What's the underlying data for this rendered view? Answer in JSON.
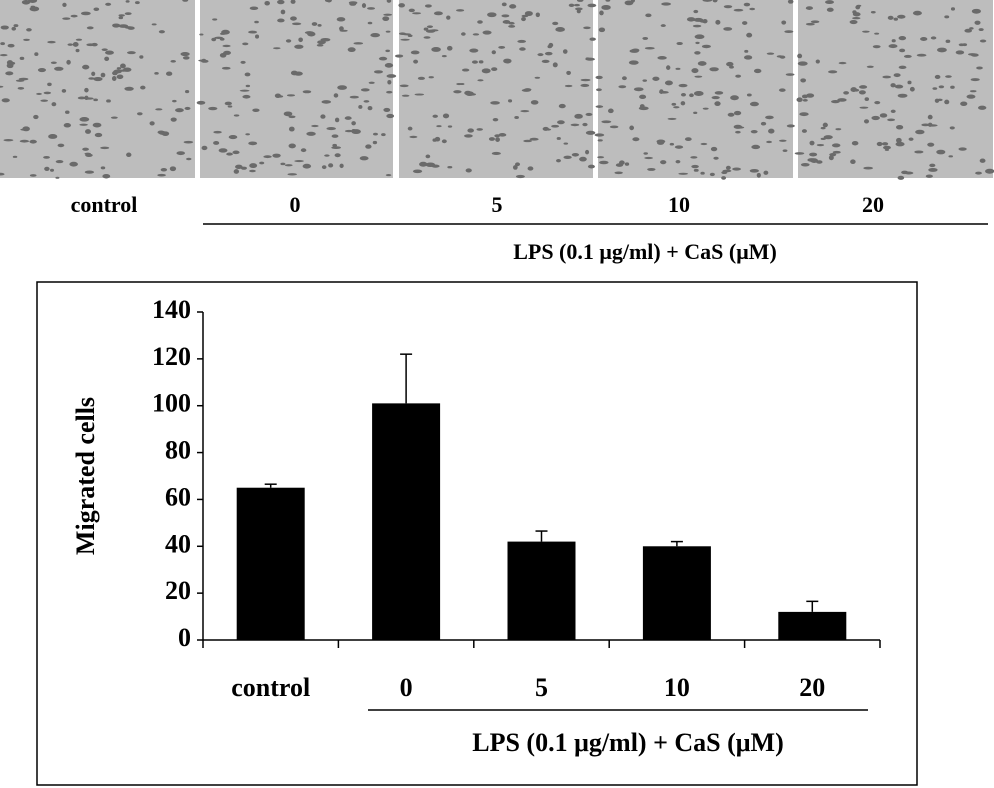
{
  "image_panel": {
    "labels": [
      "control",
      "0",
      "5",
      "10",
      "20"
    ],
    "caption": "LPS (0.1 μg/ml) + CaS (μM)"
  },
  "chart_data": {
    "type": "bar",
    "ylabel": "Migrated cells",
    "categories": [
      "control",
      "0",
      "5",
      "10",
      "20"
    ],
    "values": [
      65,
      101,
      42,
      40,
      12
    ],
    "errors": [
      1.5,
      21,
      4.5,
      2,
      4.5
    ],
    "color": "#000000",
    "ylim": [
      0,
      140
    ],
    "yticks": [
      0,
      20,
      40,
      60,
      80,
      100,
      120,
      140
    ],
    "group_label": "LPS (0.1 μg/ml) + CaS (μM)"
  }
}
